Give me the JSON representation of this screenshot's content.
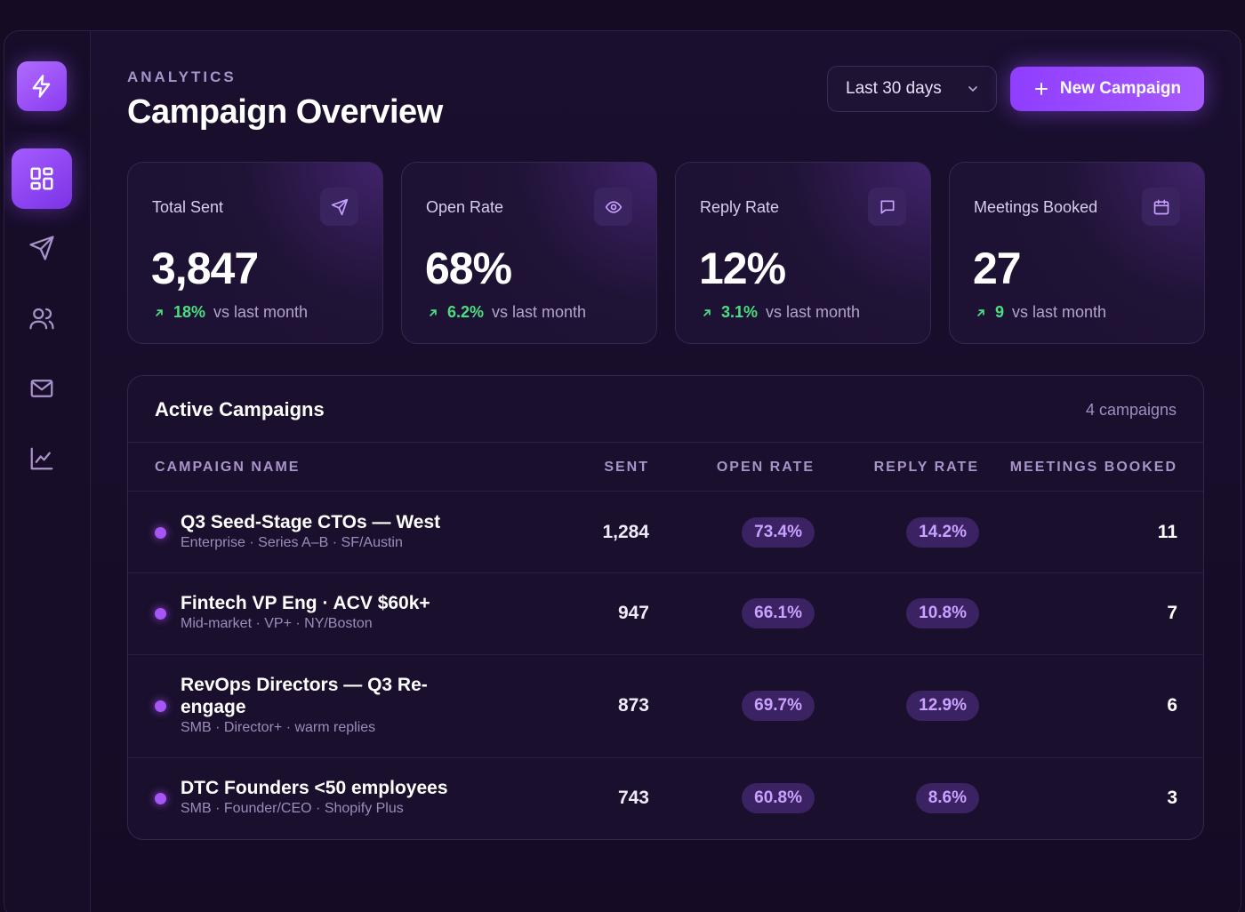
{
  "header": {
    "eyebrow": "ANALYTICS",
    "title": "Campaign Overview",
    "range_select": "Last 30 days",
    "new_campaign_label": "New Campaign"
  },
  "sidebar": {
    "logo_icon": "bolt-icon",
    "items": [
      {
        "icon": "grid-dashboard-icon",
        "active": true
      },
      {
        "icon": "send-icon",
        "active": false
      },
      {
        "icon": "users-icon",
        "active": false
      },
      {
        "icon": "mail-icon",
        "active": false
      },
      {
        "icon": "chart-line-icon",
        "active": false
      }
    ]
  },
  "stats": [
    {
      "label": "Total Sent",
      "value": "3,847",
      "delta": "18%",
      "delta_text": "vs last month",
      "icon": "send-icon"
    },
    {
      "label": "Open Rate",
      "value": "68%",
      "delta": "6.2%",
      "delta_text": "vs last month",
      "icon": "eye-icon"
    },
    {
      "label": "Reply Rate",
      "value": "12%",
      "delta": "3.1%",
      "delta_text": "vs last month",
      "icon": "message-icon"
    },
    {
      "label": "Meetings Booked",
      "value": "27",
      "delta": "9",
      "delta_text": "vs last month",
      "icon": "calendar-icon"
    }
  ],
  "campaigns_table": {
    "title": "Active Campaigns",
    "count": "4 campaigns",
    "columns": [
      "CAMPAIGN NAME",
      "SENT",
      "OPEN RATE",
      "REPLY RATE",
      "MEETINGS BOOKED"
    ],
    "rows": [
      {
        "name": "Q3 Seed-Stage CTOs — West",
        "sub": "Enterprise · Series A–B · SF/Austin",
        "sent": "1,284",
        "open_rate": "73.4%",
        "reply_rate": "14.2%",
        "meetings": "11"
      },
      {
        "name": "Fintech VP Eng · ACV $60k+",
        "sub": "Mid-market · VP+ · NY/Boston",
        "sent": "947",
        "open_rate": "66.1%",
        "reply_rate": "10.8%",
        "meetings": "7"
      },
      {
        "name": "RevOps Directors — Q3 Re-engage",
        "sub": "SMB · Director+ · warm replies",
        "sent": "873",
        "open_rate": "69.7%",
        "reply_rate": "12.9%",
        "meetings": "6"
      },
      {
        "name": "DTC Founders <50 employees",
        "sub": "SMB · Founder/CEO · Shopify Plus",
        "sent": "743",
        "open_rate": "60.8%",
        "reply_rate": "8.6%",
        "meetings": "3"
      }
    ]
  },
  "colors": {
    "accent": "#9747ff",
    "positive": "#4ade80",
    "background": "#150c24"
  }
}
